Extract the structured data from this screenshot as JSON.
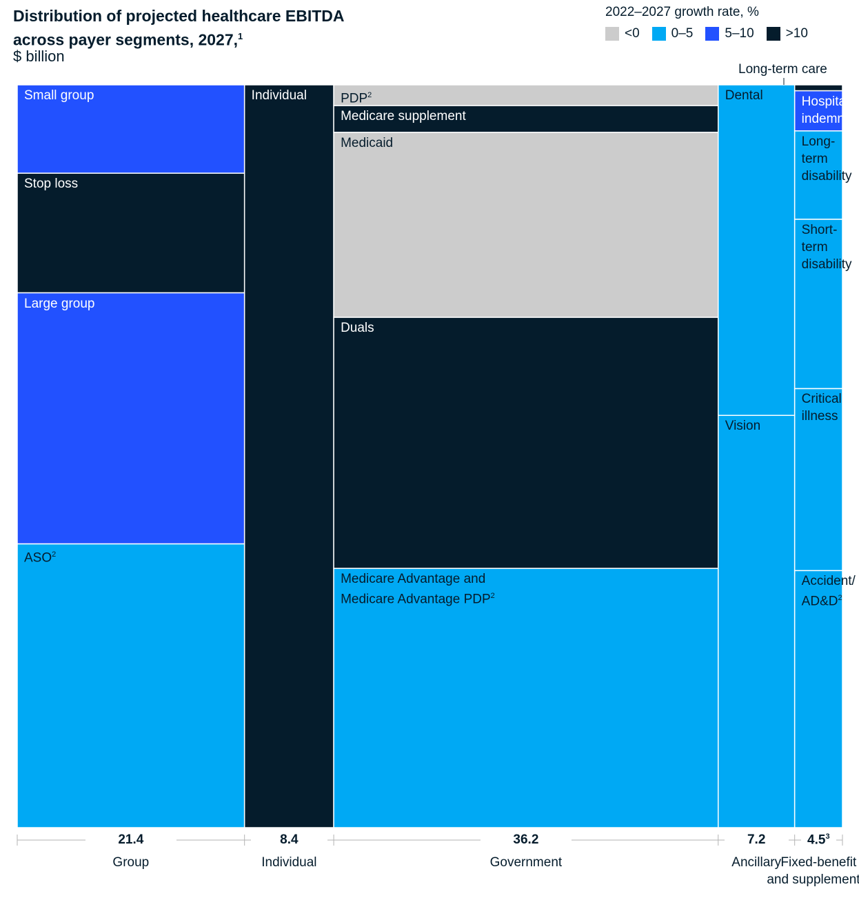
{
  "title": "Distribution of projected healthcare EBITDA across payer segments, 2027,",
  "title_footnote": "1",
  "subtitle": "$ billion",
  "legend": {
    "title": "2022–2027 growth rate, %",
    "items": [
      {
        "label": "<0",
        "color": "#cccccc"
      },
      {
        "label": "0–5",
        "color": "#00a9f4"
      },
      {
        "label": "5–10",
        "color": "#2251ff"
      },
      {
        "label": ">10",
        "color": "#051c2c"
      }
    ]
  },
  "chart_data": {
    "type": "marimekko",
    "total_label_note": "Long-term care",
    "columns": [
      {
        "name": "Group",
        "value": "21.4",
        "footnote": "",
        "total": 21.4,
        "segments": [
          {
            "label": "Small group",
            "footnote": "",
            "share": 0.119,
            "growth": "5–10"
          },
          {
            "label": "Stop loss",
            "footnote": "",
            "share": 0.161,
            "growth": ">10"
          },
          {
            "label": "Large group",
            "footnote": "",
            "share": 0.338,
            "growth": "5–10"
          },
          {
            "label": "ASO",
            "footnote": "2",
            "share": 0.382,
            "growth": "0–5"
          }
        ]
      },
      {
        "name": "Individual",
        "value": "8.4",
        "footnote": "",
        "total": 8.4,
        "segments": [
          {
            "label": "Individual",
            "footnote": "",
            "share": 1.0,
            "growth": ">10"
          }
        ]
      },
      {
        "name": "Government",
        "value": "36.2",
        "footnote": "",
        "total": 36.2,
        "segments": [
          {
            "label": "PDP",
            "footnote": "2",
            "share": 0.028,
            "growth": "<0"
          },
          {
            "label": "Medicare supplement",
            "footnote": "",
            "share": 0.036,
            "growth": ">10"
          },
          {
            "label": "Medicaid",
            "footnote": "",
            "share": 0.249,
            "growth": "<0"
          },
          {
            "label": "Duals",
            "footnote": "",
            "share": 0.338,
            "growth": ">10"
          },
          {
            "label": "Medicare Advantage and\nMedicare Advantage PDP",
            "footnote": "2",
            "share": 0.349,
            "growth": "0–5"
          }
        ]
      },
      {
        "name": "Ancillary",
        "value": "7.2",
        "footnote": "",
        "total": 7.2,
        "segments": [
          {
            "label": "Dental",
            "footnote": "",
            "share": 0.445,
            "growth": "0–5"
          },
          {
            "label": "Vision",
            "footnote": "",
            "share": 0.555,
            "growth": "0–5"
          }
        ]
      },
      {
        "name": "Fixed-benefit\nand supplemental",
        "value": "4.5",
        "footnote": "3",
        "total": 4.5,
        "segments": [
          {
            "label": "",
            "footnote": "",
            "share": 0.008,
            "growth": ">10"
          },
          {
            "label": "Hospital\nindemnity",
            "footnote": "",
            "share": 0.054,
            "growth": "5–10"
          },
          {
            "label": "Long-term\ndisability",
            "footnote": "",
            "share": 0.119,
            "growth": "0–5"
          },
          {
            "label": "Short-term\ndisability",
            "footnote": "",
            "share": 0.228,
            "growth": "0–5"
          },
          {
            "label": "Critical illness",
            "footnote": "",
            "share": 0.245,
            "growth": "0–5"
          },
          {
            "label": "Accident/\nAD&D",
            "footnote": "2",
            "share": 0.346,
            "growth": "0–5"
          }
        ]
      }
    ]
  }
}
